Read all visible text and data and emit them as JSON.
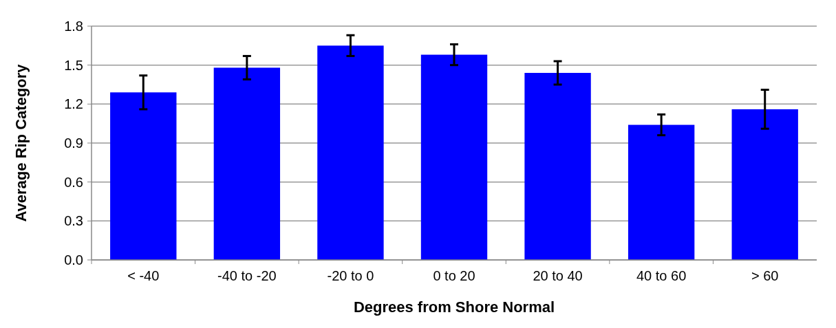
{
  "chart_data": {
    "type": "bar",
    "xlabel": "Degrees from Shore Normal",
    "ylabel": "Average Rip Category",
    "categories": [
      "< -40",
      "-40 to -20",
      "-20 to 0",
      "0 to 20",
      "20 to 40",
      "40 to 60",
      "> 60"
    ],
    "values": [
      1.29,
      1.48,
      1.65,
      1.58,
      1.44,
      1.04,
      1.16
    ],
    "errors": [
      0.13,
      0.09,
      0.08,
      0.08,
      0.09,
      0.08,
      0.15
    ],
    "color": "#0000ff",
    "ylim": [
      0,
      1.8
    ],
    "yticks": [
      {
        "value": 0,
        "label": "0.0"
      },
      {
        "value": 0.3,
        "label": "0.3"
      },
      {
        "value": 0.6,
        "label": "0.6"
      },
      {
        "value": 0.9,
        "label": "0.9"
      },
      {
        "value": 1.2,
        "label": "1.2"
      },
      {
        "value": 1.5,
        "label": "1.5"
      },
      {
        "value": 1.8,
        "label": "1.8"
      }
    ],
    "grid": "y"
  }
}
